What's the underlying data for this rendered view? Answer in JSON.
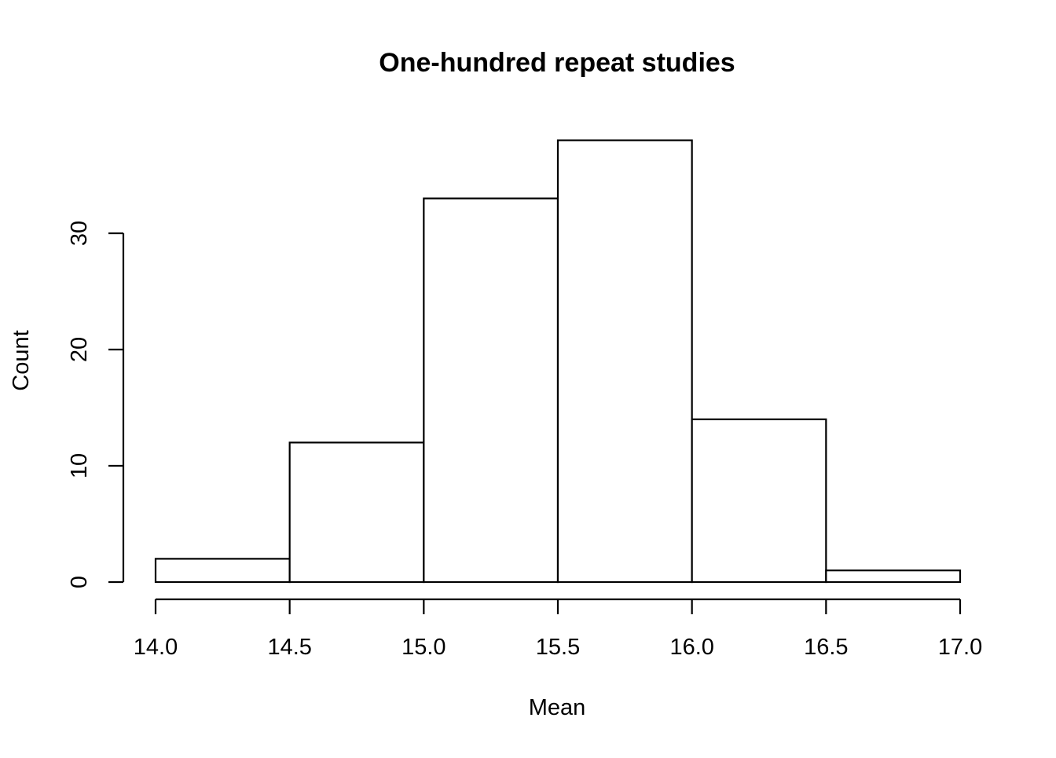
{
  "chart_data": {
    "type": "bar",
    "subtype": "histogram",
    "title": "One-hundred repeat studies",
    "xlabel": "Mean",
    "ylabel": "Count",
    "bins": [
      {
        "start": 14.0,
        "end": 14.5,
        "count": 2
      },
      {
        "start": 14.5,
        "end": 15.0,
        "count": 12
      },
      {
        "start": 15.0,
        "end": 15.5,
        "count": 33
      },
      {
        "start": 15.5,
        "end": 16.0,
        "count": 38
      },
      {
        "start": 16.0,
        "end": 16.5,
        "count": 14
      },
      {
        "start": 16.5,
        "end": 17.0,
        "count": 1
      }
    ],
    "xlim": [
      14.0,
      17.0
    ],
    "ylim": [
      0,
      38
    ],
    "x_ticks": [
      "14.0",
      "14.5",
      "15.0",
      "15.5",
      "16.0",
      "16.5",
      "17.0"
    ],
    "x_tick_values": [
      14.0,
      14.5,
      15.0,
      15.5,
      16.0,
      16.5,
      17.0
    ],
    "y_ticks": [
      "0",
      "10",
      "20",
      "30"
    ],
    "y_tick_values": [
      0,
      10,
      20,
      30
    ],
    "grid": false,
    "legend": "none",
    "colors": {
      "bar_fill": "#ffffff",
      "bar_stroke": "#000000",
      "background": "#ffffff"
    }
  }
}
